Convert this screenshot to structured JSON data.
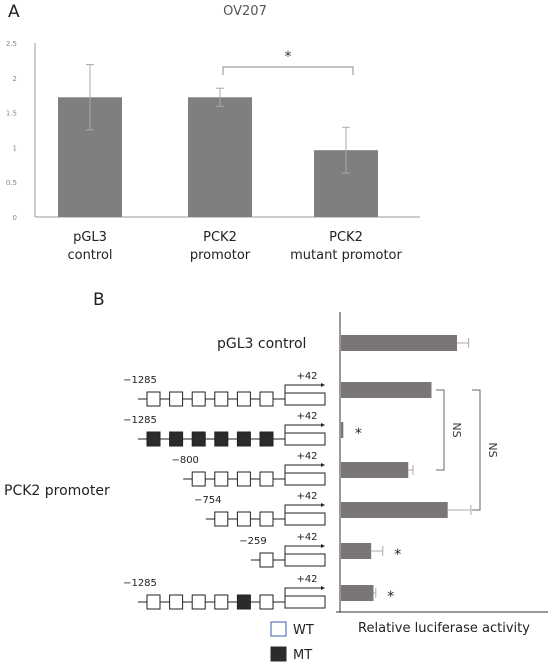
{
  "panel_a": {
    "label": "A",
    "title": "OV207",
    "significance": "*",
    "categories": [
      [
        "pGL3",
        "control"
      ],
      [
        "PCK2",
        "promotor"
      ],
      [
        "PCK2",
        "mutant promotor"
      ]
    ]
  },
  "panel_b": {
    "label": "B",
    "row_group_label": "PCK2 promoter",
    "control_label": "pGL3 control",
    "xlabel": "Relative luciferase activity",
    "constructs": [
      {
        "start": "−1285",
        "end": "+42",
        "boxes": [
          "WT",
          "WT",
          "WT",
          "WT",
          "WT",
          "WT"
        ]
      },
      {
        "start": "−1285",
        "end": "+42",
        "boxes": [
          "MT",
          "MT",
          "MT",
          "MT",
          "MT",
          "MT"
        ]
      },
      {
        "start": "−800",
        "end": "+42",
        "boxes": [
          "WT",
          "WT",
          "WT",
          "WT"
        ]
      },
      {
        "start": "−754",
        "end": "+42",
        "boxes": [
          "WT",
          "WT",
          "WT"
        ]
      },
      {
        "start": "−259",
        "end": "+42",
        "boxes": [
          "WT"
        ]
      },
      {
        "start": "−1285",
        "end": "+42",
        "boxes": [
          "WT",
          "WT",
          "WT",
          "WT",
          "MT",
          "WT"
        ]
      }
    ],
    "stars": [
      "",
      "",
      "*",
      "",
      "",
      "*",
      "*"
    ],
    "brackets": [
      "NS",
      "NS"
    ],
    "legend": [
      {
        "label": "WT",
        "key": "WT"
      },
      {
        "label": "MT",
        "key": "MT"
      }
    ]
  },
  "colors": {
    "bar": "#7a7675",
    "bar_a": "#7f7f7f",
    "mt_box": "#2b2b2b",
    "wt_legend_border": "#3a5ea8",
    "axis": "#999999",
    "errbar": "#aaaaaa"
  },
  "chart_data": [
    {
      "type": "bar",
      "title": "OV207",
      "categories": [
        "pGL3 control",
        "PCK2 promotor",
        "PCK2 mutant promotor"
      ],
      "values": [
        1.72,
        1.72,
        0.96
      ],
      "errors": [
        0.47,
        0.13,
        0.33
      ],
      "ylim": [
        0,
        2.5
      ],
      "yticks": [
        0,
        0.5,
        1,
        1.5,
        2,
        2.5
      ],
      "ytick_labels": [
        "0",
        "0.5",
        "1",
        "1.5",
        "2",
        "2.5"
      ],
      "xlabel": "",
      "ylabel": "",
      "annotations": [
        {
          "between": [
            "PCK2 promotor",
            "PCK2 mutant promotor"
          ],
          "text": "*"
        }
      ],
      "grid": false,
      "legend": "none"
    },
    {
      "type": "bar",
      "orientation": "horizontal",
      "categories": [
        "pGL3 control",
        "-1285/+42 WT",
        "-1285/+42 MT",
        "-800/+42",
        "-754/+42",
        "-259/+42",
        "-1285/+42 one MT"
      ],
      "values": [
        1.0,
        0.78,
        0.02,
        0.58,
        0.92,
        0.26,
        0.28
      ],
      "errors": [
        0.1,
        0.0,
        0.0,
        0.04,
        0.2,
        0.1,
        0.02
      ],
      "xlim": [
        0,
        1.75
      ],
      "xlabel": "Relative luciferase activity",
      "ylabel": "",
      "grid": false,
      "legend": "bottom-left"
    }
  ]
}
